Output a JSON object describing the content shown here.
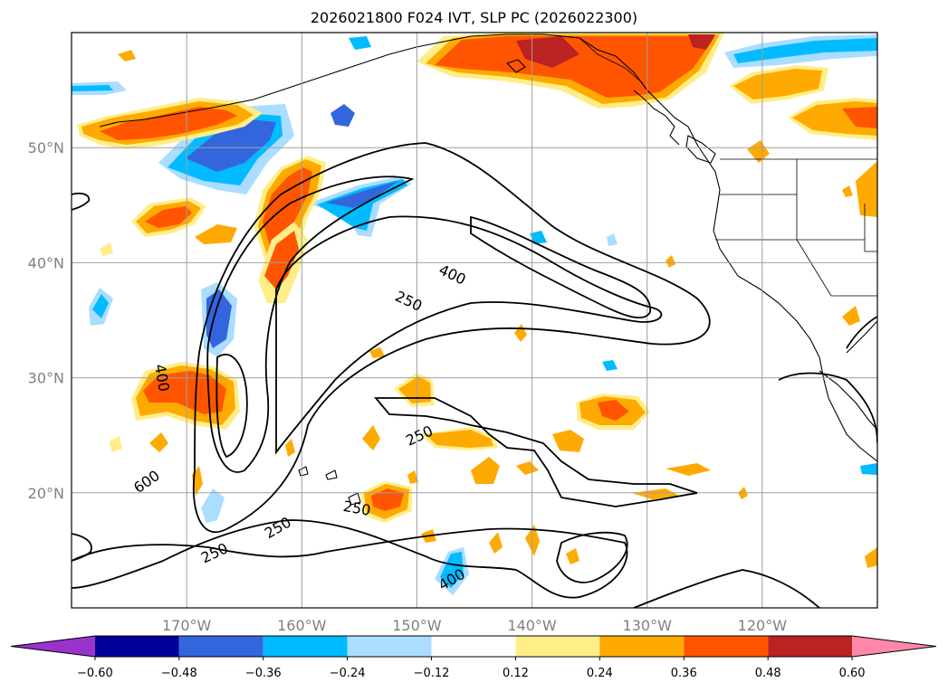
{
  "title": "2026021800 F024 IVT, SLP PC (2026022300)",
  "map": {
    "lon_range": [
      -180,
      -110
    ],
    "lat_range": [
      10,
      60
    ],
    "lat_ticks": [
      {
        "value": 20,
        "label": "20°N"
      },
      {
        "value": 30,
        "label": "30°N"
      },
      {
        "value": 40,
        "label": "40°N"
      },
      {
        "value": 50,
        "label": "50°N"
      }
    ],
    "lon_ticks": [
      {
        "value": -170,
        "label": "170°W"
      },
      {
        "value": -160,
        "label": "160°W"
      },
      {
        "value": -150,
        "label": "150°W"
      },
      {
        "value": -140,
        "label": "140°W"
      },
      {
        "value": -130,
        "label": "130°W"
      },
      {
        "value": -120,
        "label": "120°W"
      }
    ],
    "grid": true,
    "contour_labels": [
      {
        "text": "400",
        "lon": -146.9,
        "lat": 39.0,
        "rot": 25
      },
      {
        "text": "250",
        "lon": -150.7,
        "lat": 36.7,
        "rot": 25
      },
      {
        "text": "400",
        "lon": -172.1,
        "lat": 30.0,
        "rot": 80
      },
      {
        "text": "600",
        "lon": -173.5,
        "lat": 21.0,
        "rot": -35
      },
      {
        "text": "250",
        "lon": -149.8,
        "lat": 25.0,
        "rot": -25
      },
      {
        "text": "250",
        "lon": -155.2,
        "lat": 18.7,
        "rot": 10
      },
      {
        "text": "250",
        "lon": -162.1,
        "lat": 17.0,
        "rot": -30
      },
      {
        "text": "250",
        "lon": -167.6,
        "lat": 14.8,
        "rot": -25
      },
      {
        "text": "400",
        "lon": -147.0,
        "lat": 12.5,
        "rot": -30
      }
    ]
  },
  "colorbar": {
    "colors": [
      "#9933cc",
      "#000099",
      "#3366dd",
      "#00bbff",
      "#aaddff",
      "#ffffff",
      "#ffee88",
      "#ffaa00",
      "#ff5500",
      "#bb2222",
      "#ff88aa"
    ],
    "labels": [
      "−0.60",
      "−0.48",
      "−0.36",
      "−0.24",
      "−0.12",
      "0.12",
      "0.24",
      "0.36",
      "0.48",
      "0.60"
    ]
  }
}
